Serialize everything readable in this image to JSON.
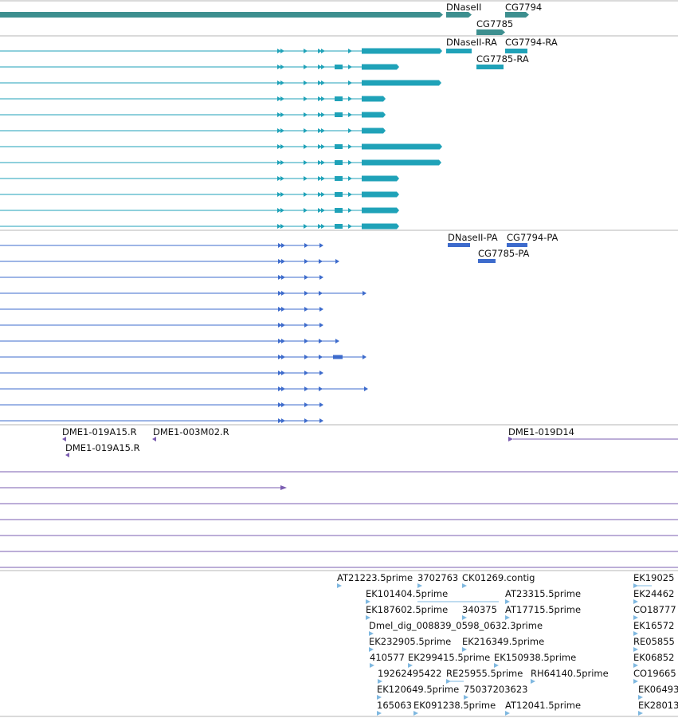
{
  "colors": {
    "gene": "#3d8f8f",
    "transcript": "#1fa2b8",
    "protein": "#3d6bcc",
    "clone": "#7a5cb0",
    "est": "#7fb8e0",
    "divider": "#b4b4b4"
  },
  "gene_track": {
    "labels": [
      "DNaseII",
      "CG7794",
      "CG7785"
    ]
  },
  "transcript_track": {
    "labels": [
      "DNaseII-RA",
      "CG7794-RA",
      "CG7785-RA"
    ]
  },
  "protein_track": {
    "labels": [
      "DNaseII-PA",
      "CG7794-PA",
      "CG7785-PA"
    ]
  },
  "clone_track": {
    "labels": [
      "DME1-019A15.R",
      "DME1-003M02.R",
      "DME1-019A15.R",
      "DME1-019D14"
    ]
  },
  "est_track": {
    "labels": [
      "AT21223.5prime",
      "3702763",
      "CK01269.contig",
      "EK19025",
      "EK101404.5prime",
      "AT23315.5prime",
      "EK24462",
      "EK187602.5prime",
      "340375",
      "AT17715.5prime",
      "CO18777",
      "Dmel_dig_008839_0598_0632.3prime",
      "EK16572",
      "EK232905.5prime",
      "EK216349.5prime",
      "RE05855",
      "410577",
      "EK299415.5prime",
      "EK150938.5prime",
      "EK06852",
      "19262495422",
      "RE25955.5prime",
      "RH64140.5prime",
      "CO19665",
      "EK120649.5prime",
      "75037203623",
      "EK06493",
      "165063",
      "EK091238.5prime",
      "AT12041.5prime",
      "EK28013"
    ]
  }
}
